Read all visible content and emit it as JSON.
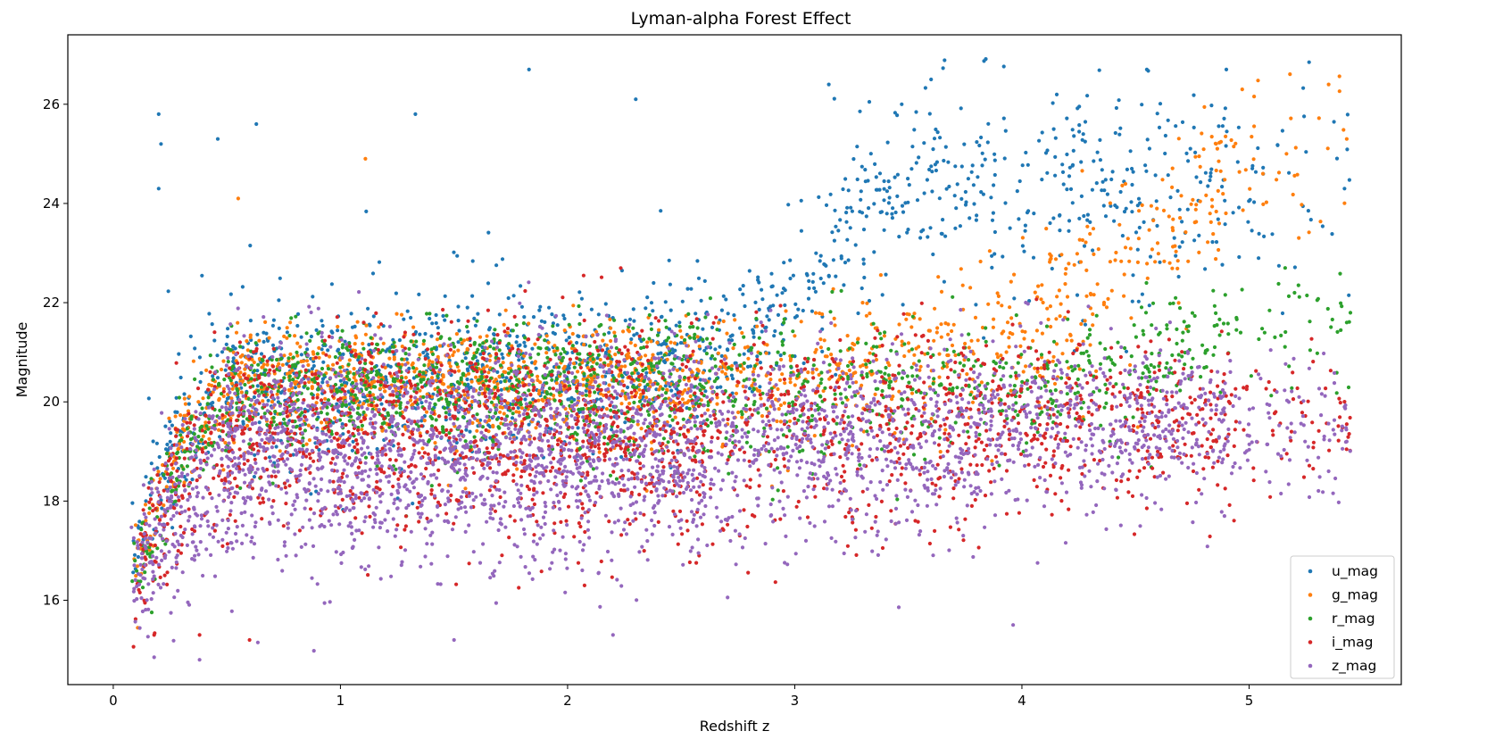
{
  "chart_data": {
    "type": "scatter",
    "title": "Lyman-alpha Forest Effect",
    "xlabel": "Redshift z",
    "ylabel": "Magnitude",
    "xlim": [
      -0.2,
      5.67
    ],
    "ylim": [
      14.3,
      27.4
    ],
    "xticks": [
      0,
      1,
      2,
      3,
      4,
      5
    ],
    "yticks": [
      16,
      18,
      20,
      22,
      24,
      26
    ],
    "grid": false,
    "legend_position": "lower right",
    "series": [
      {
        "name": "u_mag",
        "color": "#1f77b4",
        "trend": [
          [
            0.1,
            17.0
          ],
          [
            0.3,
            19.6
          ],
          [
            0.55,
            20.4
          ],
          [
            2.0,
            20.6
          ],
          [
            2.5,
            21.0
          ],
          [
            2.9,
            21.6
          ],
          [
            3.1,
            22.5
          ],
          [
            3.3,
            23.8
          ],
          [
            3.7,
            24.6
          ],
          [
            4.0,
            24.5
          ],
          [
            4.5,
            24.3
          ],
          [
            5.0,
            24.5
          ]
        ],
        "spread": [
          [
            0.1,
            0.6
          ],
          [
            0.5,
            0.8
          ],
          [
            2.0,
            0.8
          ],
          [
            3.0,
            0.7
          ],
          [
            3.6,
            1.0
          ],
          [
            5.0,
            1.1
          ]
        ],
        "outlier_points": [
          [
            0.2,
            25.8
          ],
          [
            0.21,
            25.2
          ],
          [
            0.2,
            24.3
          ],
          [
            0.63,
            25.6
          ],
          [
            0.46,
            25.3
          ],
          [
            1.33,
            25.8
          ],
          [
            1.83,
            26.7
          ],
          [
            2.3,
            26.1
          ],
          [
            3.15,
            26.4
          ],
          [
            3.6,
            26.5
          ],
          [
            4.55,
            26.7
          ],
          [
            4.9,
            26.7
          ],
          [
            5.42,
            24.3
          ]
        ]
      },
      {
        "name": "g_mag",
        "color": "#ff7f0e",
        "trend": [
          [
            0.1,
            16.9
          ],
          [
            0.3,
            19.3
          ],
          [
            0.55,
            20.4
          ],
          [
            2.0,
            20.4
          ],
          [
            3.0,
            20.5
          ],
          [
            3.4,
            20.9
          ],
          [
            3.8,
            21.2
          ],
          [
            4.1,
            21.6
          ],
          [
            4.4,
            22.4
          ],
          [
            4.7,
            23.5
          ],
          [
            5.0,
            25.0
          ]
        ],
        "spread": [
          [
            0.1,
            0.5
          ],
          [
            0.5,
            0.55
          ],
          [
            3.0,
            0.55
          ],
          [
            4.0,
            0.8
          ],
          [
            5.0,
            1.0
          ]
        ],
        "outlier_points": [
          [
            1.11,
            24.9
          ],
          [
            0.55,
            24.1
          ],
          [
            5.35,
            26.4
          ],
          [
            5.43,
            25.3
          ],
          [
            4.97,
            26.3
          ]
        ]
      },
      {
        "name": "r_mag",
        "color": "#2ca02c",
        "trend": [
          [
            0.1,
            16.8
          ],
          [
            0.3,
            18.9
          ],
          [
            0.55,
            20.2
          ],
          [
            2.0,
            20.3
          ],
          [
            3.0,
            20.2
          ],
          [
            4.0,
            20.2
          ],
          [
            4.4,
            20.5
          ],
          [
            4.7,
            21.2
          ],
          [
            5.0,
            21.5
          ],
          [
            5.4,
            21.5
          ]
        ],
        "spread": [
          [
            0.1,
            0.5
          ],
          [
            0.5,
            0.6
          ],
          [
            3.0,
            0.75
          ],
          [
            4.5,
            0.6
          ],
          [
            5.4,
            0.6
          ]
        ],
        "outlier_points": [
          [
            5.43,
            21.6
          ],
          [
            5.3,
            22.05
          ],
          [
            5.2,
            22.2
          ]
        ]
      },
      {
        "name": "i_mag",
        "color": "#d62728",
        "trend": [
          [
            0.1,
            16.6
          ],
          [
            0.3,
            18.4
          ],
          [
            0.55,
            19.5
          ],
          [
            2.0,
            19.4
          ],
          [
            3.0,
            19.4
          ],
          [
            4.0,
            19.6
          ],
          [
            4.6,
            19.7
          ],
          [
            5.0,
            19.6
          ],
          [
            5.4,
            19.5
          ]
        ],
        "spread": [
          [
            0.1,
            0.7
          ],
          [
            0.5,
            0.95
          ],
          [
            2.0,
            1.0
          ],
          [
            3.0,
            1.05
          ],
          [
            4.0,
            0.9
          ],
          [
            5.0,
            0.7
          ]
        ],
        "outlier_points": [
          [
            0.18,
            15.3
          ],
          [
            0.6,
            15.2
          ],
          [
            0.38,
            15.3
          ],
          [
            5.43,
            19.55
          ]
        ]
      },
      {
        "name": "z_mag",
        "color": "#9467bd",
        "trend": [
          [
            0.1,
            16.5
          ],
          [
            0.3,
            18.0
          ],
          [
            0.55,
            19.0
          ],
          [
            2.0,
            19.0
          ],
          [
            3.0,
            19.2
          ],
          [
            4.0,
            19.5
          ],
          [
            4.6,
            19.7
          ],
          [
            5.0,
            19.5
          ],
          [
            5.4,
            19.4
          ]
        ],
        "spread": [
          [
            0.1,
            0.7
          ],
          [
            0.5,
            1.05
          ],
          [
            2.0,
            1.05
          ],
          [
            3.0,
            1.05
          ],
          [
            4.0,
            0.9
          ],
          [
            5.0,
            0.7
          ]
        ],
        "outlier_points": [
          [
            0.18,
            14.85
          ],
          [
            0.38,
            14.8
          ],
          [
            1.5,
            15.2
          ],
          [
            2.2,
            15.3
          ],
          [
            5.43,
            19.2
          ],
          [
            5.35,
            18.6
          ]
        ]
      }
    ]
  }
}
